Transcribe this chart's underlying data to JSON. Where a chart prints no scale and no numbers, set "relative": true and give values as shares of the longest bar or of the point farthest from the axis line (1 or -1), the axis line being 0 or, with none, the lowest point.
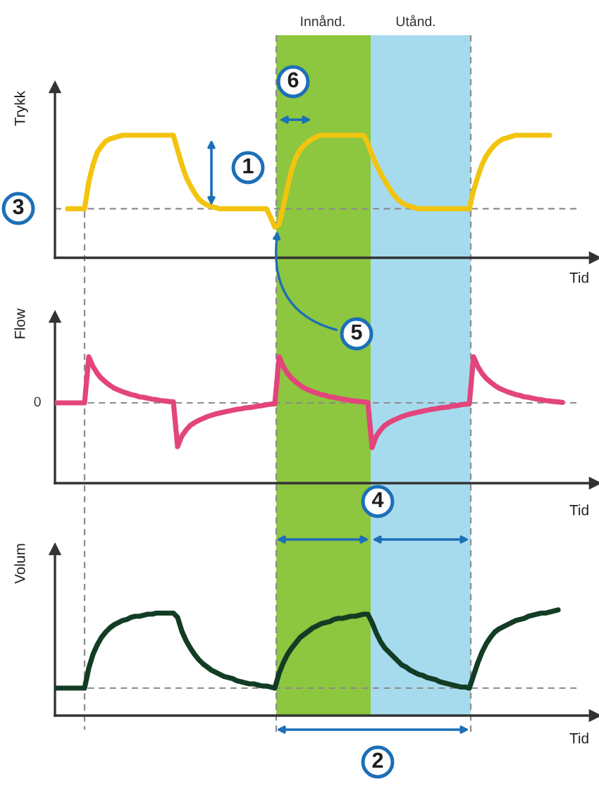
{
  "chart_data": [
    {
      "type": "line",
      "ylabel": "Trykk",
      "xlabel": "Tid",
      "relative": true,
      "categories": [
        null,
        null,
        null,
        null,
        null,
        null,
        null,
        null,
        null,
        null,
        null,
        null,
        null,
        null,
        null,
        null,
        null,
        null,
        null,
        null,
        null,
        null,
        null,
        null,
        null,
        null,
        null,
        null,
        null,
        null,
        null,
        null,
        null,
        null,
        null,
        null,
        null,
        null,
        null,
        null,
        null,
        null,
        null,
        null,
        null,
        null,
        null,
        null,
        null,
        null,
        null,
        null,
        null,
        null,
        null,
        null,
        null,
        null,
        null,
        null,
        null,
        null,
        null,
        null,
        null,
        null,
        null,
        null,
        null,
        null,
        null,
        null,
        null,
        null,
        null,
        null,
        null,
        null,
        null,
        null,
        null,
        null,
        null,
        null,
        null,
        null,
        null,
        null,
        null,
        null,
        null,
        null,
        null,
        null,
        null,
        null,
        null,
        null,
        null,
        null,
        null,
        null,
        null,
        null,
        null,
        null,
        null,
        null,
        null,
        null,
        null,
        null,
        null,
        null,
        null,
        null,
        null,
        null,
        null,
        null,
        null
      ],
      "series": [
        {
          "color": "#f2c40f",
          "values": [
            null,
            null,
            null,
            0.4,
            0.4,
            0.4,
            0.4,
            0.4,
            0.62,
            0.76,
            0.86,
            0.91,
            0.95,
            0.97,
            0.98,
            0.99,
            1.0,
            1.0,
            1.0,
            1.0,
            1.0,
            1.0,
            1.0,
            1.0,
            1.0,
            1.0,
            1.0,
            1.0,
            1.0,
            0.88,
            0.76,
            0.66,
            0.59,
            0.53,
            0.48,
            0.45,
            0.43,
            0.42,
            0.41,
            0.4,
            0.4,
            0.4,
            0.4,
            0.4,
            0.4,
            0.4,
            0.4,
            0.4,
            0.4,
            0.4,
            0.4,
            0.33,
            0.25,
            0.27,
            0.42,
            0.58,
            0.72,
            0.82,
            0.88,
            0.92,
            0.95,
            0.97,
            0.99,
            1.0,
            1.0,
            1.0,
            1.0,
            1.0,
            1.0,
            1.0,
            1.0,
            1.0,
            1.0,
            1.0,
            0.93,
            0.84,
            0.76,
            0.69,
            0.63,
            0.57,
            0.52,
            0.48,
            0.45,
            0.43,
            0.42,
            0.41,
            0.4,
            0.4,
            0.4,
            0.4,
            0.4,
            0.4,
            0.4,
            0.4,
            0.4,
            0.4,
            0.4,
            0.4,
            0.4,
            0.55,
            0.66,
            0.76,
            0.83,
            0.88,
            0.92,
            0.95,
            0.97,
            0.98,
            0.99,
            1.0,
            1.0,
            1.0,
            1.0,
            1.0,
            1.0,
            1.0,
            1.0,
            1.0,
            null,
            null,
            null
          ]
        }
      ],
      "ref_lines": [
        {
          "axis": "y",
          "value": 0.4,
          "color": "#8c8c8c",
          "line_style": "dashed"
        }
      ],
      "annotations": [
        "Innånd.",
        "Utånd.",
        "6",
        "1",
        "3",
        "5"
      ]
    },
    {
      "type": "line",
      "ylabel": "Flow",
      "xlabel": "Tid",
      "relative": true,
      "categories": [
        null,
        null,
        null,
        null,
        null,
        null,
        null,
        null,
        null,
        null,
        null,
        null,
        null,
        null,
        null,
        null,
        null,
        null,
        null,
        null,
        null,
        null,
        null,
        null,
        null,
        null,
        null,
        null,
        null,
        null,
        null,
        null,
        null,
        null,
        null,
        null,
        null,
        null,
        null,
        null,
        null,
        null,
        null,
        null,
        null,
        null,
        null,
        null,
        null,
        null,
        null,
        null,
        null,
        null,
        null,
        null,
        null,
        null,
        null,
        null,
        null,
        null,
        null,
        null,
        null,
        null,
        null,
        null,
        null,
        null,
        null,
        null,
        null,
        null,
        null,
        null,
        null,
        null,
        null,
        null,
        null,
        null,
        null,
        null,
        null,
        null,
        null,
        null,
        null,
        null,
        null,
        null,
        null,
        null,
        null,
        null,
        null,
        null,
        null,
        null,
        null,
        null,
        null,
        null,
        null,
        null,
        null,
        null,
        null,
        null,
        null,
        null,
        null,
        null,
        null,
        null,
        null,
        null,
        null,
        null,
        null
      ],
      "series": [
        {
          "color": "#e2457c",
          "values": [
            0,
            0,
            0,
            0,
            0,
            0,
            0,
            0,
            1.0,
            0.79,
            0.64,
            0.53,
            0.45,
            0.38,
            0.32,
            0.28,
            0.24,
            0.21,
            0.18,
            0.16,
            0.13,
            0.12,
            0.1,
            0.08,
            0.07,
            0.05,
            0.04,
            0.03,
            0.02,
            -0.95,
            -0.72,
            -0.59,
            -0.49,
            -0.43,
            -0.38,
            -0.34,
            -0.3,
            -0.27,
            -0.24,
            -0.22,
            -0.2,
            -0.18,
            -0.16,
            -0.14,
            -0.13,
            -0.11,
            -0.1,
            -0.09,
            -0.07,
            -0.06,
            -0.04,
            -0.03,
            -0.02,
            1.0,
            0.79,
            0.64,
            0.53,
            0.45,
            0.38,
            0.32,
            0.28,
            0.24,
            0.21,
            0.18,
            0.16,
            0.13,
            0.12,
            0.1,
            0.08,
            0.07,
            0.05,
            0.04,
            0.03,
            0.02,
            0.01,
            -0.97,
            -0.72,
            -0.59,
            -0.49,
            -0.43,
            -0.38,
            -0.34,
            -0.3,
            -0.27,
            -0.24,
            -0.22,
            -0.2,
            -0.18,
            -0.16,
            -0.14,
            -0.13,
            -0.11,
            -0.1,
            -0.09,
            -0.07,
            -0.06,
            -0.04,
            -0.03,
            -0.02,
            1.0,
            0.79,
            0.64,
            0.53,
            0.45,
            0.38,
            0.32,
            0.28,
            0.24,
            0.21,
            0.18,
            0.16,
            0.13,
            0.12,
            0.1,
            0.08,
            0.07,
            0.05,
            0.04,
            0.03,
            0.02,
            0.01
          ]
        }
      ],
      "ref_lines": [
        {
          "axis": "y",
          "value": 0,
          "label": "0",
          "color": "#8c8c8c",
          "line_style": "dashed"
        }
      ]
    },
    {
      "type": "line",
      "ylabel": "Volum",
      "xlabel": "Tid",
      "relative": true,
      "categories": [
        null,
        null,
        null,
        null,
        null,
        null,
        null,
        null,
        null,
        null,
        null,
        null,
        null,
        null,
        null,
        null,
        null,
        null,
        null,
        null,
        null,
        null,
        null,
        null,
        null,
        null,
        null,
        null,
        null,
        null,
        null,
        null,
        null,
        null,
        null,
        null,
        null,
        null,
        null,
        null,
        null,
        null,
        null,
        null,
        null,
        null,
        null,
        null,
        null,
        null,
        null,
        null,
        null,
        null,
        null,
        null,
        null,
        null,
        null,
        null,
        null,
        null,
        null,
        null,
        null,
        null,
        null,
        null,
        null,
        null,
        null,
        null,
        null,
        null,
        null,
        null,
        null,
        null,
        null,
        null,
        null,
        null,
        null,
        null,
        null,
        null,
        null,
        null,
        null,
        null,
        null,
        null,
        null,
        null,
        null,
        null,
        null,
        null,
        null,
        null,
        null,
        null,
        null,
        null,
        null,
        null,
        null,
        null,
        null,
        null,
        null,
        null,
        null,
        null,
        null,
        null,
        null,
        null,
        null,
        null,
        null
      ],
      "series": [
        {
          "color": "#123d24",
          "values": [
            0.26,
            0.26,
            0.26,
            0.26,
            0.26,
            0.26,
            0.26,
            0.26,
            0.45,
            0.58,
            0.67,
            0.74,
            0.79,
            0.83,
            0.86,
            0.88,
            0.9,
            0.91,
            0.93,
            0.94,
            0.94,
            0.95,
            0.96,
            0.96,
            0.97,
            0.97,
            0.97,
            0.97,
            0.97,
            0.93,
            0.8,
            0.71,
            0.64,
            0.58,
            0.53,
            0.49,
            0.46,
            0.43,
            0.41,
            0.39,
            0.37,
            0.36,
            0.35,
            0.33,
            0.32,
            0.31,
            0.3,
            0.3,
            0.29,
            0.28,
            0.28,
            0.27,
            0.26,
            0.4,
            0.5,
            0.58,
            0.64,
            0.69,
            0.74,
            0.77,
            0.8,
            0.83,
            0.85,
            0.87,
            0.88,
            0.89,
            0.91,
            0.92,
            0.92,
            0.93,
            0.94,
            0.94,
            0.95,
            0.96,
            0.96,
            0.88,
            0.78,
            0.7,
            0.64,
            0.6,
            0.56,
            0.52,
            0.48,
            0.46,
            0.43,
            0.41,
            0.39,
            0.38,
            0.36,
            0.35,
            0.34,
            0.32,
            0.31,
            0.3,
            0.29,
            0.28,
            0.27,
            0.27,
            0.26,
            0.38,
            0.5,
            0.6,
            0.68,
            0.74,
            0.79,
            0.82,
            0.84,
            0.86,
            0.88,
            0.9,
            0.91,
            0.92,
            0.94,
            0.95,
            0.96,
            0.97,
            0.97,
            0.98,
            0.99,
            1.0,
            null
          ]
        }
      ],
      "ref_lines": [
        {
          "axis": "y",
          "value": 0.26,
          "color": "#8c8c8c",
          "line_style": "dashed"
        }
      ],
      "annotations": [
        "4",
        "2"
      ]
    }
  ]
}
